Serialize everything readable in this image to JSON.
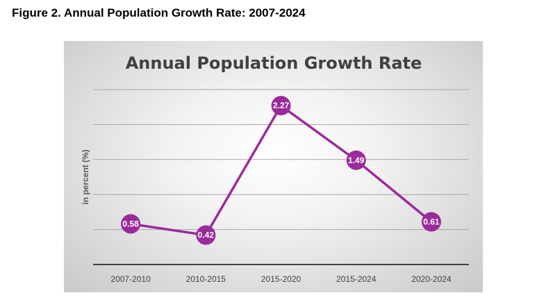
{
  "figure": {
    "caption": "Figure 2. Annual Population Growth Rate: 2007-2024"
  },
  "chart_data": {
    "type": "line",
    "title": "Annual Population Growth Rate",
    "xlabel": "",
    "ylabel": "in percent (%)",
    "categories": [
      "2007-2010",
      "2010-2015",
      "2015-2020",
      "2015-2024",
      "2020-2024"
    ],
    "series": [
      {
        "values": [
          0.58,
          0.42,
          2.27,
          1.49,
          0.61
        ]
      }
    ],
    "ylim": [
      0,
      2.5
    ],
    "grid": true,
    "legend": "none",
    "colors": {
      "line": "#9b2a9b",
      "marker": "#9b2a9b",
      "gridline": "#a6a6a6",
      "axis": "#404040"
    }
  }
}
